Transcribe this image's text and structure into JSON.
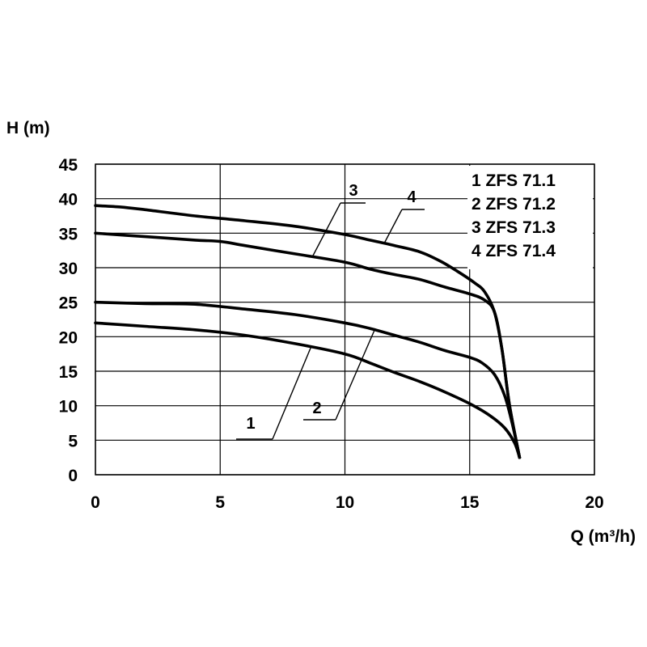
{
  "chart_data": {
    "type": "line",
    "xlabel": "Q (m³/h)",
    "ylabel": "H (m)",
    "xlim": [
      0,
      20
    ],
    "ylim": [
      0,
      45
    ],
    "xticks": [
      "0",
      "5",
      "10",
      "15",
      "20"
    ],
    "yticks": [
      "0",
      "5",
      "10",
      "15",
      "20",
      "25",
      "30",
      "35",
      "40",
      "45"
    ],
    "grid": true,
    "legend_position": "top-right",
    "series": [
      {
        "name": "1  ZFS 71.1",
        "callout": "1",
        "points": [
          [
            0,
            22
          ],
          [
            2,
            21.5
          ],
          [
            4,
            21
          ],
          [
            6,
            20.2
          ],
          [
            8,
            19
          ],
          [
            10,
            17.5
          ],
          [
            11,
            16.2
          ],
          [
            12,
            14.8
          ],
          [
            13,
            13.5
          ],
          [
            14,
            12
          ],
          [
            15,
            10.3
          ],
          [
            15.8,
            8.6
          ],
          [
            16.4,
            6.8
          ],
          [
            16.8,
            4.6
          ],
          [
            17,
            2.5
          ]
        ]
      },
      {
        "name": "2  ZFS 71.2",
        "callout": "2",
        "points": [
          [
            0,
            25
          ],
          [
            2,
            24.8
          ],
          [
            4,
            24.7
          ],
          [
            6,
            24
          ],
          [
            8,
            23.2
          ],
          [
            10,
            22
          ],
          [
            11,
            21.2
          ],
          [
            12,
            20.2
          ],
          [
            13,
            19.2
          ],
          [
            14,
            18
          ],
          [
            15,
            17
          ],
          [
            15.5,
            16.2
          ],
          [
            16,
            14.5
          ],
          [
            16.4,
            11.5
          ],
          [
            16.7,
            7.5
          ],
          [
            17,
            2.5
          ]
        ]
      },
      {
        "name": "3  ZFS 71.3",
        "callout": "3",
        "points": [
          [
            0,
            35
          ],
          [
            2,
            34.5
          ],
          [
            4,
            34
          ],
          [
            5,
            33.8
          ],
          [
            6,
            33.2
          ],
          [
            8,
            32
          ],
          [
            10,
            30.8
          ],
          [
            11,
            29.8
          ],
          [
            12,
            29
          ],
          [
            13,
            28.3
          ],
          [
            14,
            27.2
          ],
          [
            15,
            26.2
          ],
          [
            15.6,
            25.3
          ],
          [
            16,
            23.5
          ],
          [
            16.3,
            18
          ],
          [
            16.6,
            10
          ],
          [
            17,
            2.5
          ]
        ]
      },
      {
        "name": "4  ZFS 71.4",
        "callout": "4",
        "points": [
          [
            0,
            39
          ],
          [
            1,
            38.8
          ],
          [
            2,
            38.4
          ],
          [
            4,
            37.5
          ],
          [
            6,
            36.8
          ],
          [
            8,
            36
          ],
          [
            10,
            34.8
          ],
          [
            11,
            34
          ],
          [
            12,
            33.2
          ],
          [
            13,
            32.3
          ],
          [
            13.8,
            31
          ],
          [
            14.5,
            29.5
          ],
          [
            15.2,
            27.8
          ],
          [
            15.6,
            26.5
          ],
          [
            16,
            23.5
          ],
          [
            16.3,
            18
          ],
          [
            16.6,
            10
          ],
          [
            17,
            2.5
          ]
        ]
      }
    ]
  }
}
